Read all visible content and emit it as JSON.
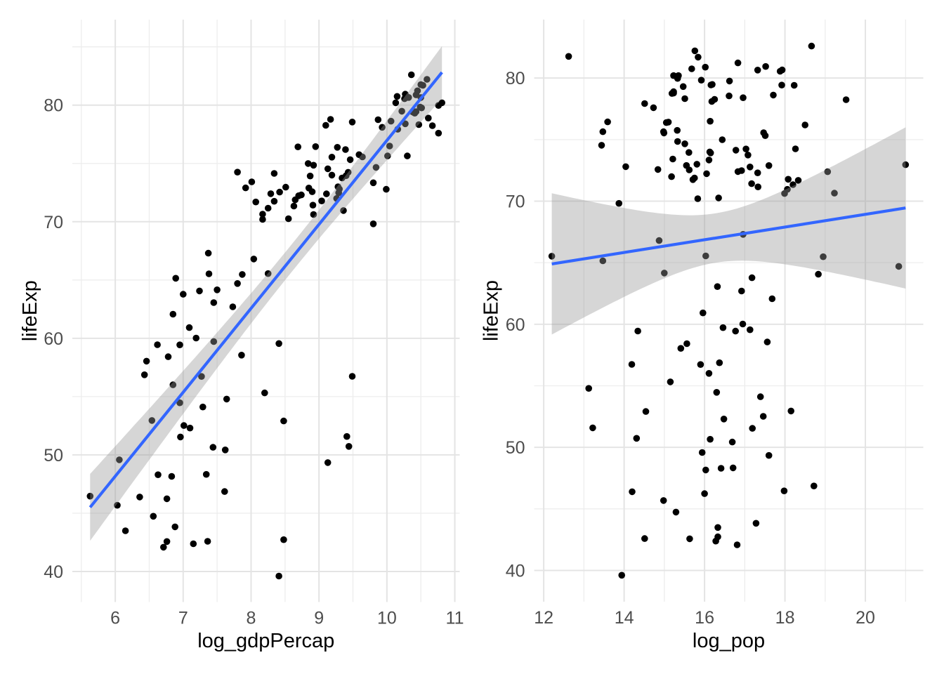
{
  "style": {
    "background": "#FFFFFF",
    "point_color": "#000000",
    "smooth_line_color": "#3366FF",
    "band_color": "#999999",
    "band_alpha": 0.4,
    "grid_major_color": "#E4E4E4",
    "grid_minor_color": "#EDEDED",
    "tick_label_color": "#4D4D4D",
    "axis_title_color": "#000000"
  },
  "chart_data": [
    {
      "type": "scatter",
      "title": "",
      "xlabel": "log_gdpPercap",
      "ylabel": "lifeExp",
      "x_ticks": [
        6,
        7,
        8,
        9,
        10,
        11
      ],
      "y_ticks": [
        40,
        50,
        60,
        70,
        80
      ],
      "xlim": [
        5.368,
        11.072
      ],
      "ylim": [
        37.38,
        87.33
      ],
      "grid": true,
      "legend": false,
      "smooth": "lm",
      "x": [
        6.88,
        8.69,
        8.74,
        8.48,
        9.46,
        10.45,
        10.49,
        10.3,
        7.24,
        10.43,
        7.27,
        8.25,
        8.92,
        9.44,
        9.11,
        9.28,
        7.1,
        6.06,
        7.45,
        7.62,
        10.5,
        6.56,
        7.44,
        9.49,
        8.51,
        8.85,
        6.89,
        5.63,
        8.2,
        9.17,
        7.34,
        9.59,
        9.1,
        10.04,
        10.47,
        7.64,
        8.7,
        8.84,
        8.63,
        8.65,
        9.41,
        6.46,
        6.54,
        10.41,
        10.32,
        9.49,
        6.62,
        10.38,
        7.19,
        10.22,
        8.55,
        6.85,
        6.36,
        7.09,
        8.17,
        10.59,
        9.8,
        10.5,
        7.8,
        8.17,
        9.36,
        8.41,
        10.61,
        10.15,
        10.26,
        8.9,
        10.36,
        8.42,
        7.29,
        7.37,
        10.06,
        10.76,
        9.26,
        7.36,
        6.03,
        9.4,
        6.95,
        6.63,
        9.43,
        6.95,
        7.5,
        9.3,
        9.39,
        8.04,
        9.13,
        8.25,
        6.71,
        6.85,
        8.48,
        7.0,
        10.51,
        10.13,
        7.92,
        6.43,
        7.61,
        10.81,
        10.01,
        7.87,
        9.19,
        8.34,
        8.91,
        8.07,
        9.64,
        9.93,
        9.87,
        8.95,
        9.29,
        6.76,
        7.38,
        9.99,
        7.45,
        9.19,
        6.76,
        10.76,
        9.84,
        10.16,
        6.83,
        9.13,
        10.27,
        8.29,
        7.86,
        8.41,
        10.43,
        10.53,
        8.34,
        10.27,
        7.01,
        8.92,
        6.78,
        9.8,
        8.87,
        9.04,
        6.96,
        10.41,
        10.67,
        9.27,
        9.34,
        7.8,
        8.01,
        7.73,
        7.15,
        6.15
      ],
      "y": [
        43.83,
        76.42,
        72.3,
        42.73,
        75.32,
        81.23,
        79.83,
        75.64,
        64.06,
        79.44,
        56.73,
        65.55,
        74.85,
        50.73,
        72.39,
        73.0,
        52.3,
        49.58,
        59.72,
        50.43,
        80.65,
        44.74,
        50.65,
        78.55,
        72.96,
        72.89,
        65.15,
        46.46,
        55.32,
        78.78,
        48.33,
        75.75,
        78.27,
        76.49,
        78.33,
        54.79,
        72.23,
        74.99,
        71.34,
        71.88,
        51.58,
        58.04,
        52.95,
        79.31,
        80.66,
        56.74,
        59.45,
        79.41,
        60.02,
        79.48,
        70.26,
        56.01,
        46.39,
        60.92,
        70.2,
        82.21,
        73.34,
        81.76,
        64.7,
        70.65,
        70.96,
        59.55,
        78.89,
        80.75,
        80.55,
        72.57,
        82.6,
        72.54,
        54.11,
        67.3,
        78.62,
        77.59,
        71.99,
        42.59,
        45.68,
        73.95,
        59.44,
        48.3,
        74.24,
        54.47,
        64.16,
        72.8,
        76.19,
        66.8,
        74.54,
        71.16,
        42.08,
        62.07,
        52.91,
        63.78,
        79.76,
        80.2,
        72.9,
        56.87,
        46.86,
        80.2,
        75.64,
        65.48,
        75.54,
        71.75,
        71.42,
        71.69,
        75.56,
        78.1,
        78.75,
        76.44,
        72.48,
        46.24,
        65.53,
        72.78,
        63.06,
        74.0,
        42.57,
        79.97,
        74.66,
        77.93,
        48.16,
        49.34,
        80.94,
        72.4,
        58.56,
        39.61,
        80.88,
        81.7,
        74.14,
        78.4,
        52.52,
        70.62,
        58.42,
        69.82,
        73.92,
        71.78,
        51.54,
        79.43,
        78.24,
        76.38,
        73.75,
        74.25,
        73.42,
        62.7,
        42.38,
        43.49
      ]
    },
    {
      "type": "scatter",
      "title": "",
      "xlabel": "log_pop",
      "ylabel": "lifeExp",
      "x_ticks": [
        12,
        14,
        16,
        18,
        20
      ],
      "y_ticks": [
        40,
        50,
        60,
        70,
        80
      ],
      "xlim": [
        11.764,
        21.44
      ],
      "ylim": [
        37.46,
        84.75
      ],
      "grid": true,
      "legend": false,
      "smooth": "lm",
      "x": [
        17.28,
        15.1,
        17.32,
        16.33,
        17.51,
        16.83,
        15.92,
        13.47,
        18.83,
        16.16,
        15.9,
        16.03,
        15.33,
        14.31,
        19.06,
        15.81,
        16.48,
        15.94,
        16.46,
        16.69,
        17.32,
        15.29,
        16.14,
        16.61,
        21.0,
        17.6,
        13.47,
        17.98,
        15.15,
        15.23,
        16.71,
        15.32,
        16.25,
        16.14,
        15.51,
        13.12,
        16.05,
        16.44,
        18.2,
        15.75,
        13.22,
        15.41,
        18.15,
        15.47,
        17.93,
        14.19,
        14.34,
        18.23,
        16.95,
        16.19,
        16.35,
        16.11,
        14.2,
        15.96,
        15.83,
        15.76,
        16.11,
        12.62,
        20.83,
        19.23,
        18.06,
        17.13,
        15.23,
        15.68,
        17.88,
        14.84,
        18.66,
        15.62,
        17.39,
        16.96,
        17.71,
        14.73,
        15.18,
        14.51,
        14.98,
        15.61,
        16.77,
        16.41,
        17.03,
        16.3,
        15.0,
        14.04,
        18.5,
        14.87,
        13.44,
        17.33,
        16.81,
        17.68,
        14.54,
        17.18,
        16.62,
        15.23,
        15.55,
        16.37,
        18.72,
        15.35,
        14.98,
        18.95,
        14.99,
        15.71,
        17.17,
        18.33,
        17.47,
        16.18,
        15.19,
        13.59,
        16.92,
        16.0,
        12.2,
        17.13,
        16.32,
        16.13,
        15.63,
        15.33,
        15.51,
        14.51,
        16.03,
        17.6,
        17.52,
        16.83,
        17.56,
        13.94,
        16.02,
        15.84,
        16.78,
        16.96,
        17.46,
        17.99,
        15.56,
        13.87,
        16.15,
        18.08,
        17.19,
        17.92,
        19.52,
        15.05,
        17.08,
        18.26,
        15.21,
        16.92,
        16.28,
        16.33
      ],
      "y": [
        43.83,
        76.42,
        72.3,
        42.73,
        75.32,
        81.23,
        79.83,
        75.64,
        64.06,
        79.44,
        56.73,
        65.55,
        74.85,
        50.73,
        72.39,
        73.0,
        52.3,
        49.58,
        59.72,
        50.43,
        80.65,
        44.74,
        50.65,
        78.55,
        72.96,
        72.89,
        65.15,
        46.46,
        55.32,
        78.78,
        48.33,
        75.75,
        78.27,
        76.49,
        78.33,
        54.79,
        72.23,
        74.99,
        71.34,
        71.88,
        51.58,
        58.04,
        52.95,
        79.31,
        80.66,
        56.74,
        59.45,
        79.41,
        60.02,
        79.48,
        70.26,
        56.01,
        46.39,
        60.92,
        70.2,
        82.21,
        73.34,
        81.76,
        64.7,
        70.65,
        70.96,
        59.55,
        78.89,
        80.75,
        80.55,
        72.57,
        82.6,
        72.54,
        54.11,
        67.3,
        78.62,
        77.59,
        71.99,
        42.59,
        45.68,
        73.95,
        59.44,
        48.3,
        74.24,
        54.47,
        64.16,
        72.8,
        76.19,
        66.8,
        74.54,
        71.16,
        42.08,
        62.07,
        52.91,
        63.78,
        79.76,
        80.2,
        72.9,
        56.87,
        46.86,
        80.2,
        75.64,
        65.48,
        75.54,
        71.75,
        71.42,
        71.69,
        75.56,
        78.1,
        78.75,
        76.44,
        72.48,
        46.24,
        65.53,
        72.78,
        63.06,
        74.0,
        42.57,
        79.97,
        74.66,
        77.93,
        48.16,
        49.34,
        80.94,
        72.4,
        58.56,
        39.61,
        80.88,
        81.7,
        74.14,
        78.4,
        52.52,
        70.62,
        58.42,
        69.82,
        73.92,
        71.78,
        51.54,
        79.43,
        78.24,
        76.38,
        73.75,
        74.25,
        73.42,
        62.7,
        42.38,
        43.49
      ]
    }
  ]
}
